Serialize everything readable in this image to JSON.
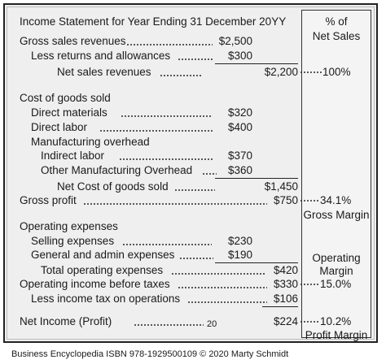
{
  "header": {
    "title": "Income Statement for Year Ending 31 December 20YY",
    "pct_title_1": "% of",
    "pct_title_2": "Net Sales"
  },
  "rows": {
    "gross_sales": {
      "label": "Gross sales revenues",
      "amount": "$2,500"
    },
    "returns": {
      "label": "Less returns and allowances",
      "amount": "$300"
    },
    "net_sales": {
      "label": "Net sales revenues",
      "amount": "$2,200",
      "pct": "100%"
    },
    "cogs_head": {
      "label": "Cost of goods sold"
    },
    "direct_materials": {
      "label": "Direct materials",
      "amount": "$320"
    },
    "direct_labor": {
      "label": "Direct labor",
      "amount": "$400"
    },
    "mfg_overhead": {
      "label": "Manufacturing  overhead"
    },
    "indirect_labor": {
      "label": "Indirect labor",
      "amount": "$370"
    },
    "other_overhead": {
      "label": "Other Manufacturing Overhead",
      "amount": "$360"
    },
    "net_cogs": {
      "label": "Net Cost of goods sold",
      "amount": "$1,450"
    },
    "gross_profit": {
      "label": "Gross profit",
      "amount": "$750",
      "pct": "34.1%",
      "pct_label": "Gross Margin"
    },
    "opex_head": {
      "label": "Operating  expenses"
    },
    "selling": {
      "label": "Selling expenses",
      "amount": "$230"
    },
    "general_admin": {
      "label": "General and admin expenses",
      "amount": "$190"
    },
    "total_opex": {
      "label": "Total operating expenses",
      "amount": "$420"
    },
    "op_income": {
      "label": "Operating income before taxes",
      "amount": "$330",
      "pct": "15.0%",
      "pct_label_1": "Operating",
      "pct_label_2": "Margin"
    },
    "tax": {
      "label": "Less income tax on operations",
      "amount": "$106"
    },
    "net_income": {
      "label": "Net Income (Profit)",
      "amount": "$224",
      "pct": "10.2%",
      "pct_label": "Profit Margin",
      "page_number": "20"
    }
  },
  "footer": {
    "credit": "Business Encyclopedia ISBN 978-1929500109 © 2020 Marty Schmidt"
  }
}
